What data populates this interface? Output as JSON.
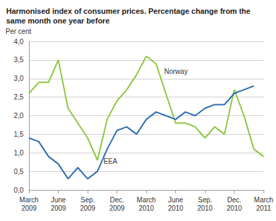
{
  "chart_data": {
    "type": "line",
    "title": "Harmonised index of consumer prices. Percentage change from the same month one year before",
    "y_label": "Per cent",
    "categories": [
      "March 2009",
      null,
      null,
      "June 2009",
      null,
      null,
      "Sep. 2009",
      null,
      null,
      "Dec. 2009",
      null,
      null,
      "March 2010",
      null,
      null,
      "June 2010",
      null,
      null,
      "Sep. 2010",
      null,
      null,
      "Dec. 2010",
      null,
      null,
      "March 2011"
    ],
    "series": [
      {
        "name": "Norway",
        "color": "#8dc63f",
        "values": [
          2.6,
          2.9,
          2.9,
          3.5,
          2.2,
          1.8,
          1.4,
          0.8,
          1.9,
          2.4,
          2.7,
          3.1,
          3.6,
          3.4,
          2.6,
          1.8,
          1.8,
          1.7,
          1.4,
          1.7,
          1.5,
          2.7,
          2.0,
          1.1,
          0.9
        ]
      },
      {
        "name": "EEA",
        "color": "#2b6cb0",
        "values": [
          1.4,
          1.3,
          0.9,
          0.7,
          0.3,
          0.6,
          0.3,
          0.5,
          1.1,
          1.6,
          1.7,
          1.5,
          1.9,
          2.1,
          2.0,
          1.9,
          2.1,
          2.0,
          2.2,
          2.3,
          2.3,
          2.6,
          2.7,
          2.8,
          null
        ]
      }
    ],
    "ylim": [
      0,
      4
    ],
    "yticks": [
      {
        "value": 0,
        "label": "0,0"
      },
      {
        "value": 0.5,
        "label": "0,5"
      },
      {
        "value": 1,
        "label": "1,0"
      },
      {
        "value": 1.5,
        "label": "1,5"
      },
      {
        "value": 2,
        "label": "2,0"
      },
      {
        "value": 2.5,
        "label": "2,5"
      },
      {
        "value": 3,
        "label": "3,0"
      },
      {
        "value": 3.5,
        "label": "3,5"
      },
      {
        "value": 4,
        "label": "4,0"
      }
    ],
    "grid": true
  }
}
